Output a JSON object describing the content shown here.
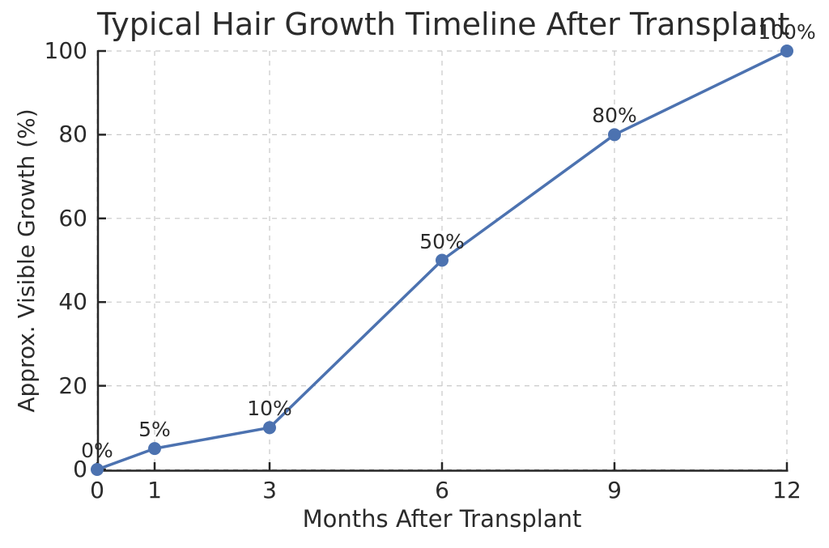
{
  "figure": {
    "background": "#ffffff"
  },
  "chart_data": {
    "type": "line",
    "title": "Typical Hair Growth Timeline After Transplant",
    "xlabel": "Months After Transplant",
    "ylabel": "Approx. Visible Growth (%)",
    "x": [
      0,
      1,
      3,
      6,
      9,
      12
    ],
    "values": [
      0,
      5,
      10,
      50,
      80,
      100
    ],
    "point_labels": [
      "0%",
      "5%",
      "10%",
      "50%",
      "80%",
      "100%"
    ],
    "xticks": [
      "0",
      "1",
      "3",
      "6",
      "9",
      "12"
    ],
    "xtick_values": [
      0,
      1,
      3,
      6,
      9,
      12
    ],
    "yticks": [
      "0",
      "20",
      "40",
      "60",
      "80",
      "100"
    ],
    "ytick_values": [
      0,
      20,
      40,
      60,
      80,
      100
    ],
    "xlim": [
      0,
      12
    ],
    "ylim": [
      0,
      100
    ],
    "grid": true,
    "grid_style": "dashed",
    "legend": null,
    "colors": {
      "line": "#4C72B0",
      "marker": "#4C72B0",
      "grid": "#c9c9c9",
      "text": "#2b2b2b",
      "spine": "#262626"
    }
  }
}
